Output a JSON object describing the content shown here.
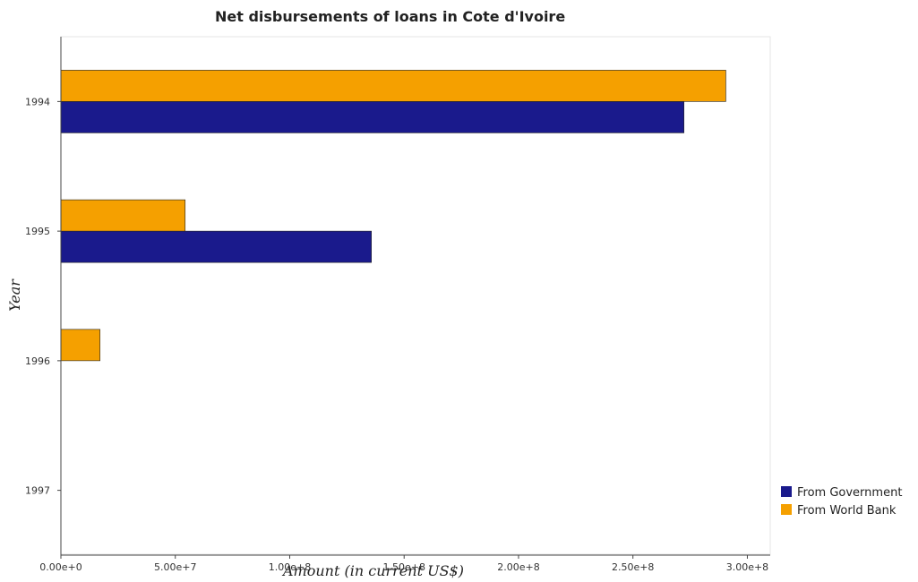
{
  "colors": {
    "government": "#1a1a8c",
    "world_bank": "#f5a000"
  },
  "chart_data": {
    "type": "bar",
    "orientation": "horizontal",
    "title": "Net disbursements of loans in Cote d'Ivoire",
    "xlabel": "Amount (in current US$)",
    "ylabel": "Year",
    "categories": [
      "1994",
      "1995",
      "1996",
      "1997"
    ],
    "series": [
      {
        "name": "From Government",
        "values": [
          272300000,
          135700000,
          0,
          0
        ]
      },
      {
        "name": "From World Bank",
        "values": [
          290600000,
          54300000,
          17100000,
          0
        ]
      }
    ],
    "xlim": [
      0,
      310000000
    ],
    "xticks": [
      0,
      50000000,
      100000000,
      150000000,
      200000000,
      250000000,
      300000000
    ],
    "xtick_labels": [
      "0.00e+0",
      "5.00e+7",
      "1.00e+8",
      "1.50e+8",
      "2.00e+8",
      "2.50e+8",
      "3.00e+8"
    ],
    "grid": false,
    "legend_position": "bottom-right"
  }
}
